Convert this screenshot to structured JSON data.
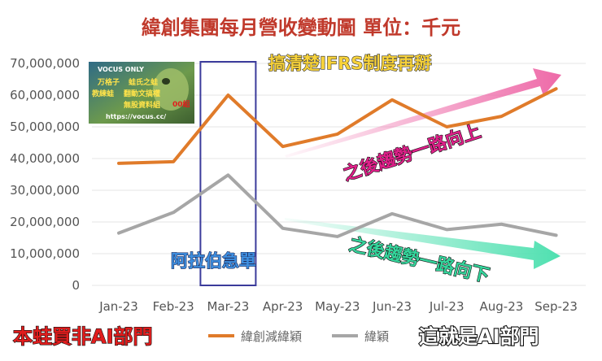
{
  "chart_data": {
    "type": "line",
    "title": "緯創集團每月營收變動圖 單位：千元",
    "categories": [
      "Jan-23",
      "Feb-23",
      "Mar-23",
      "Apr-23",
      "May-23",
      "Jun-23",
      "Jul-23",
      "Aug-23",
      "Sep-23"
    ],
    "y_ticks": [
      "0",
      "10,000,000",
      "20,000,000",
      "30,000,000",
      "40,000,000",
      "50,000,000",
      "60,000,000",
      "70,000,000"
    ],
    "ylim": [
      0,
      70000000
    ],
    "legend_position": "bottom",
    "series": [
      {
        "name": "緯創減緯穎",
        "color": "#e07b2a",
        "values": [
          38500000,
          39000000,
          60000000,
          43800000,
          47700000,
          58500000,
          50000000,
          53300000,
          62000000
        ]
      },
      {
        "name": "緯穎",
        "color": "#a6a6a6",
        "values": [
          16500000,
          23000000,
          34800000,
          18000000,
          15400000,
          22600000,
          17600000,
          19300000,
          15800000
        ]
      }
    ],
    "annotations": {
      "top_right": "搞清楚IFRS制度再掰",
      "up_trend": "之後趨勢一路向上",
      "down_trend": "之後趨勢一路向下",
      "march_box": "阿拉伯急單",
      "bottom_left": "本蛙買非AI部門",
      "bottom_right": "這就是AI部門"
    },
    "up_arrow_color": "#ee6aa8",
    "down_arrow_color": "#4fe0b0",
    "box_color": "#3b3b9b"
  },
  "watermark": {
    "line1": "VOCUS ONLY",
    "line2": "蛙氏之蛙",
    "line3": "無股資料組",
    "line4": "https://vocus.cc/",
    "author": "万格子",
    "author2": "教練蛙",
    "line5": "翻動文搞權",
    "badge": "00組"
  }
}
